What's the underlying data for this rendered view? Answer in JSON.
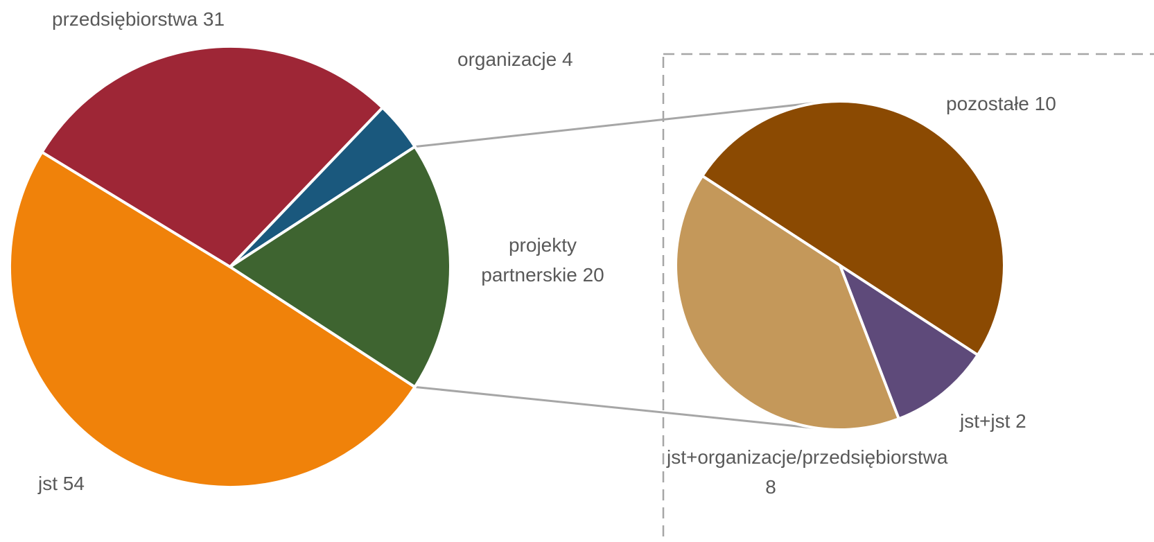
{
  "chart_data": {
    "type": "pie-of-pie",
    "categories": [
      "jst",
      "przedsiębiorstwa",
      "organizacje",
      "projekty partnerskie"
    ],
    "values": [
      54,
      31,
      4,
      20
    ],
    "colors": [
      "#F0820A",
      "#9E2636",
      "#1A587D",
      "#3E6430"
    ],
    "secondary": {
      "categories": [
        "pozostałe",
        "jst+jst",
        "jst+organizacje/przedsiębiorstwa"
      ],
      "values": [
        10,
        2,
        8
      ],
      "colors": [
        "#8B4A02",
        "#5E4A7A",
        "#C4985A"
      ]
    }
  }
}
